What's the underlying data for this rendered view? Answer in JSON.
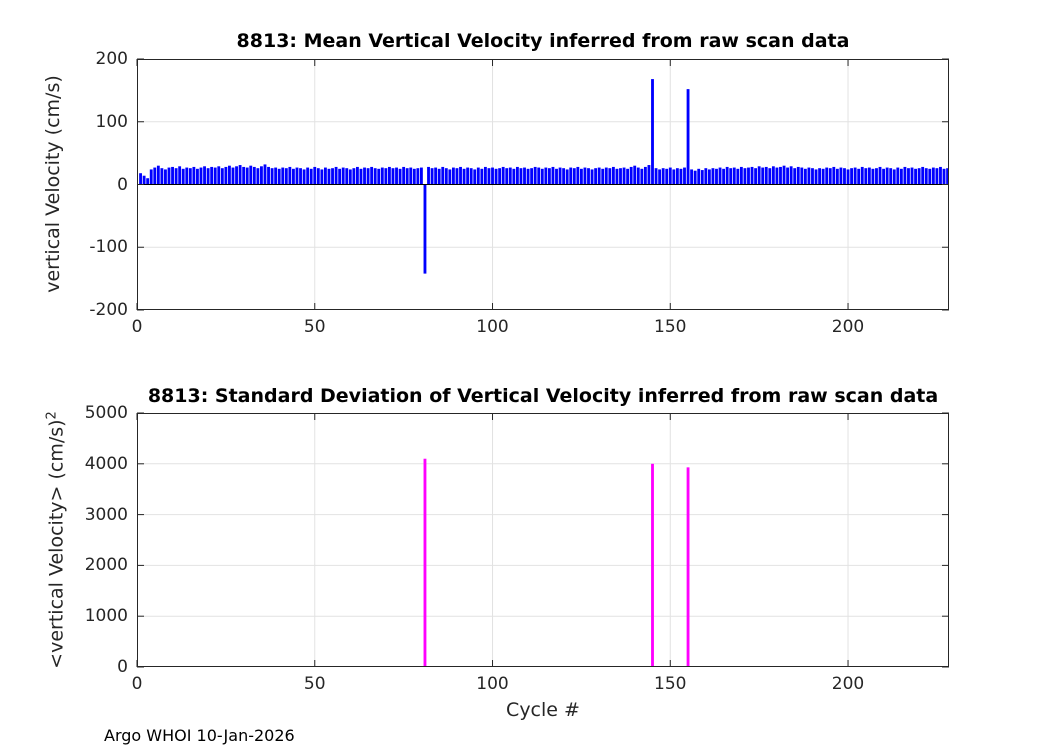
{
  "figure": {
    "footer": "Argo WHOI 10-Jan-2026",
    "background": "#ffffff",
    "axis_color": "#262626",
    "grid_color": "#e2e2e2",
    "baseline_color": "#000000"
  },
  "chart_data": [
    {
      "type": "bar",
      "title": "8813: Mean Vertical Velocity inferred from raw scan data",
      "ylabel": "vertical Velocity (cm/s)",
      "xlabel": "",
      "bar_color": "#0000ff",
      "grid": true,
      "legend": "none",
      "xlim": [
        0,
        228.4
      ],
      "ylim": [
        -200,
        200
      ],
      "xticks": [
        0,
        50,
        100,
        150,
        200
      ],
      "yticks": [
        -200,
        -100,
        0,
        100,
        200
      ],
      "x_start": 1,
      "outliers": {
        "cycle_81": -142,
        "cycle_145": 168,
        "cycle_155": 152
      },
      "values": [
        18,
        14,
        10,
        24,
        27,
        30,
        26,
        24,
        27,
        28,
        26,
        29,
        25,
        27,
        26,
        28,
        25,
        27,
        29,
        26,
        28,
        27,
        29,
        26,
        28,
        30,
        27,
        29,
        31,
        28,
        27,
        30,
        28,
        26,
        29,
        32,
        28,
        26,
        27,
        25,
        27,
        26,
        28,
        25,
        27,
        26,
        24,
        27,
        25,
        28,
        26,
        24,
        27,
        25,
        26,
        28,
        25,
        27,
        26,
        24,
        26,
        28,
        25,
        27,
        26,
        28,
        26,
        25,
        27,
        26,
        28,
        26,
        27,
        25,
        28,
        26,
        27,
        25,
        26,
        27,
        -142,
        28,
        26,
        27,
        25,
        28,
        26,
        24,
        27,
        26,
        28,
        25,
        27,
        26,
        24,
        27,
        25,
        28,
        26,
        27,
        25,
        26,
        28,
        26,
        27,
        25,
        28,
        26,
        27,
        25,
        26,
        28,
        27,
        25,
        27,
        26,
        28,
        25,
        27,
        26,
        24,
        27,
        26,
        28,
        25,
        27,
        26,
        24,
        26,
        27,
        25,
        27,
        26,
        28,
        25,
        26,
        27,
        25,
        28,
        30,
        27,
        25,
        28,
        31,
        168,
        26,
        24,
        26,
        25,
        27,
        24,
        26,
        25,
        27,
        152,
        24,
        22,
        25,
        23,
        26,
        24,
        26,
        25,
        27,
        25,
        28,
        26,
        27,
        25,
        28,
        26,
        27,
        28,
        26,
        29,
        27,
        28,
        26,
        29,
        27,
        28,
        30,
        27,
        29,
        26,
        28,
        27,
        25,
        27,
        26,
        24,
        26,
        25,
        27,
        26,
        28,
        25,
        27,
        26,
        24,
        26,
        27,
        25,
        28,
        26,
        27,
        25,
        26,
        28,
        25,
        27,
        26,
        24,
        27,
        25,
        28,
        26,
        27,
        25,
        26,
        28,
        26,
        25,
        27,
        26,
        28,
        25,
        26
      ]
    },
    {
      "type": "bar",
      "title": "8813: Standard Deviation of Vertical Velocity inferred from raw scan data",
      "ylabel": "<vertical Velocity> (cm/s)",
      "ylabel_superscript": "2",
      "xlabel": "Cycle #",
      "bar_color": "#ff00ff",
      "grid": true,
      "legend": "none",
      "xlim": [
        0,
        228.4
      ],
      "ylim": [
        0,
        5000
      ],
      "xticks": [
        0,
        50,
        100,
        150,
        200
      ],
      "yticks": [
        0,
        1000,
        2000,
        3000,
        4000,
        5000
      ],
      "x": [
        81,
        145,
        155
      ],
      "values": [
        4100,
        4000,
        3930
      ]
    }
  ]
}
